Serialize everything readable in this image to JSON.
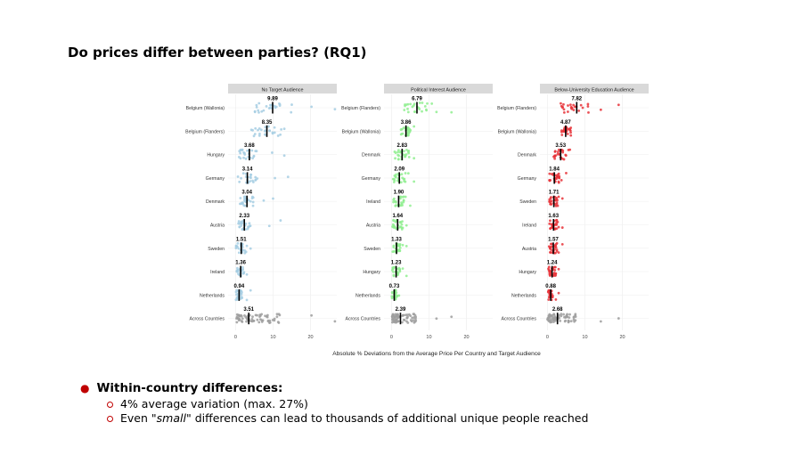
{
  "slide": {
    "title": "Do prices differ between parties? (RQ1)"
  },
  "bullets": {
    "main": "Within-country differences:",
    "sub1": "4% average variation (max. 27%)",
    "sub2_pre": "Even",
    "sub2_em": "\"small\"",
    "sub2_post": "differences can lead to thousands of additional unique people reached"
  },
  "chart_data": {
    "type": "scatter",
    "xlabel": "Absolute % Deviations from the Average Price Per Country and Target Audience",
    "xticks": [
      0,
      10,
      20
    ],
    "xlim": [
      -2,
      27
    ],
    "panels": [
      {
        "title": "No Target Audience",
        "color": "#a6cee3",
        "rows": [
          {
            "label": "Belgium (Wallonia)",
            "mean": 9.89,
            "label_value": "9.89",
            "spread": 8,
            "max": 27
          },
          {
            "label": "Belgium (Flanders)",
            "mean": 8.35,
            "label_value": "8.35",
            "spread": 6,
            "max": 13
          },
          {
            "label": "Hungary",
            "mean": 3.68,
            "label_value": "3.68",
            "spread": 4,
            "max": 13
          },
          {
            "label": "Germany",
            "mean": 3.14,
            "label_value": "3.14",
            "spread": 4,
            "max": 14
          },
          {
            "label": "Denmark",
            "mean": 3.04,
            "label_value": "3.04",
            "spread": 3,
            "max": 10
          },
          {
            "label": "Austria",
            "mean": 2.33,
            "label_value": "2.33",
            "spread": 2.5,
            "max": 12
          },
          {
            "label": "Sweden",
            "mean": 1.51,
            "label_value": "1.51",
            "spread": 2,
            "max": 4
          },
          {
            "label": "Ireland",
            "mean": 1.36,
            "label_value": "1.36",
            "spread": 1.5,
            "max": 3
          },
          {
            "label": "Netherlands",
            "mean": 0.94,
            "label_value": "0.94",
            "spread": 1.2,
            "max": 4
          },
          {
            "label": "Across Countries",
            "mean": 3.51,
            "label_value": "3.51",
            "spread": 12,
            "max": 27,
            "grey": true
          }
        ]
      },
      {
        "title": "Political Interest Audience",
        "color": "#90ee90",
        "rows": [
          {
            "label": "Belgium (Flanders)",
            "mean": 6.79,
            "label_value": "6.79",
            "spread": 6,
            "max": 16
          },
          {
            "label": "Belgium (Wallonia)",
            "mean": 3.86,
            "label_value": "3.86",
            "spread": 2,
            "max": 6
          },
          {
            "label": "Denmark",
            "mean": 2.83,
            "label_value": "2.83",
            "spread": 3,
            "max": 6
          },
          {
            "label": "Germany",
            "mean": 2.09,
            "label_value": "2.09",
            "spread": 2.5,
            "max": 6
          },
          {
            "label": "Ireland",
            "mean": 1.9,
            "label_value": "1.90",
            "spread": 2,
            "max": 5
          },
          {
            "label": "Austria",
            "mean": 1.64,
            "label_value": "1.64",
            "spread": 2,
            "max": 4
          },
          {
            "label": "Sweden",
            "mean": 1.33,
            "label_value": "1.33",
            "spread": 1.5,
            "max": 4
          },
          {
            "label": "Hungary",
            "mean": 1.23,
            "label_value": "1.23",
            "spread": 1.5,
            "max": 4
          },
          {
            "label": "Netherlands",
            "mean": 0.73,
            "label_value": "0.73",
            "spread": 1,
            "max": 2
          },
          {
            "label": "Across Countries",
            "mean": 2.39,
            "label_value": "2.39",
            "spread": 6,
            "max": 16,
            "grey": true
          }
        ]
      },
      {
        "title": "Below-University Education Audience",
        "color": "#e8343a",
        "rows": [
          {
            "label": "Belgium (Flanders)",
            "mean": 7.82,
            "label_value": "7.82",
            "spread": 7,
            "max": 19
          },
          {
            "label": "Belgium (Wallonia)",
            "mean": 4.87,
            "label_value": "4.87",
            "spread": 2,
            "max": 6
          },
          {
            "label": "Denmark",
            "mean": 3.53,
            "label_value": "3.53",
            "spread": 3,
            "max": 6
          },
          {
            "label": "Germany",
            "mean": 1.84,
            "label_value": "1.84",
            "spread": 2,
            "max": 5
          },
          {
            "label": "Sweden",
            "mean": 1.71,
            "label_value": "1.71",
            "spread": 1.8,
            "max": 4
          },
          {
            "label": "Ireland",
            "mean": 1.63,
            "label_value": "1.63",
            "spread": 1.6,
            "max": 4
          },
          {
            "label": "Austria",
            "mean": 1.57,
            "label_value": "1.57",
            "spread": 1.6,
            "max": 4
          },
          {
            "label": "Hungary",
            "mean": 1.24,
            "label_value": "1.24",
            "spread": 1.5,
            "max": 3
          },
          {
            "label": "Netherlands",
            "mean": 0.88,
            "label_value": "0.88",
            "spread": 1,
            "max": 3
          },
          {
            "label": "Across Countries",
            "mean": 2.68,
            "label_value": "2.68",
            "spread": 7,
            "max": 19,
            "grey": true
          }
        ]
      }
    ]
  }
}
